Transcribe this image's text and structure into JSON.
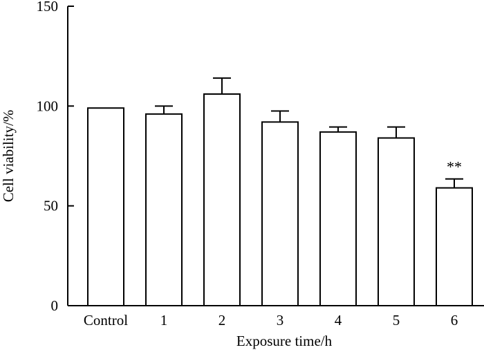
{
  "chart_data": {
    "type": "bar",
    "title": "",
    "xlabel": "Exposure time/h",
    "ylabel": "Cell viability/%",
    "ylim": [
      0,
      150
    ],
    "yticks": [
      0,
      50,
      100,
      150
    ],
    "categories": [
      "Control",
      "1",
      "2",
      "3",
      "4",
      "5",
      "6"
    ],
    "values": [
      99,
      96,
      106,
      92,
      87,
      84,
      59
    ],
    "errors": [
      0,
      4,
      8,
      5.5,
      2.5,
      5.5,
      4.5
    ],
    "annotations": [
      {
        "category": "6",
        "text": "**"
      }
    ],
    "grid": false,
    "legend": "none",
    "colors": {
      "bar_fill": "#ffffff",
      "stroke": "#000000"
    }
  }
}
